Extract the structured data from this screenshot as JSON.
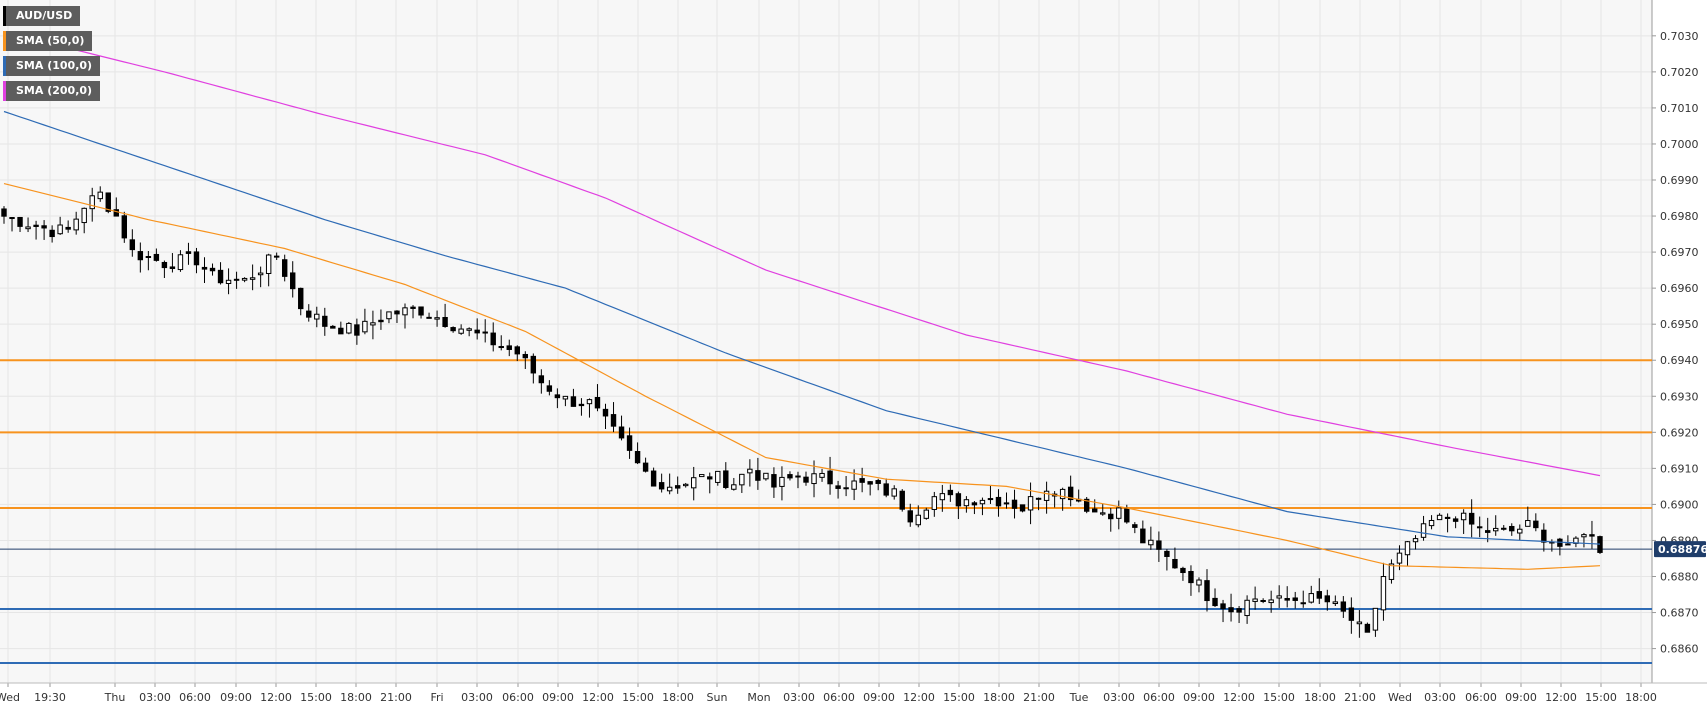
{
  "legend": {
    "items": [
      {
        "label": "AUD/USD",
        "color": "#000000"
      },
      {
        "label": "SMA (50,0)",
        "color": "#f7931e"
      },
      {
        "label": "SMA (100,0)",
        "color": "#2e6bb5"
      },
      {
        "label": "SMA (200,0)",
        "color": "#e040e0"
      }
    ]
  },
  "chart_data": {
    "type": "candlestick",
    "title": "",
    "symbol": "AUD/USD",
    "xlabel": "",
    "ylabel": "",
    "grid": true,
    "legend_position": "top-left",
    "ylim": [
      0.6854,
      0.7042
    ],
    "y_ticks": [
      "0.6860",
      "0.6870",
      "0.6880",
      "0.6890",
      "0.6900",
      "0.6910",
      "0.6920",
      "0.6930",
      "0.6940",
      "0.6950",
      "0.6960",
      "0.6970",
      "0.6980",
      "0.6990",
      "0.7000",
      "0.7010",
      "0.7020",
      "0.7030"
    ],
    "x_ticks": [
      "Wed",
      "19:30",
      "Thu",
      "03:00",
      "06:00",
      "09:00",
      "12:00",
      "15:00",
      "18:00",
      "21:00",
      "Fri",
      "03:00",
      "06:00",
      "09:00",
      "12:00",
      "15:00",
      "18:00",
      "Sun",
      "Mon",
      "03:00",
      "06:00",
      "09:00",
      "12:00",
      "15:00",
      "18:00",
      "21:00",
      "Tue",
      "03:00",
      "06:00",
      "09:00",
      "12:00",
      "15:00",
      "18:00",
      "21:00",
      "Wed",
      "03:00",
      "06:00",
      "09:00",
      "12:00",
      "15:00",
      "18:00"
    ],
    "last_price": "0.68876",
    "last_price_value": 0.68876,
    "colors": {
      "up": "#ffffff",
      "down": "#000000",
      "sma50": "#f7931e",
      "sma100": "#2e6bb5",
      "sma200": "#e040e0",
      "hline_orange": "#f7931e",
      "hline_blue": "#2e6bb5",
      "price_line": "#1f3d6a",
      "price_tag": "#1f3d6a"
    },
    "horizontal_lines": [
      {
        "value": 0.694,
        "color": "orange"
      },
      {
        "value": 0.692,
        "color": "orange"
      },
      {
        "value": 0.6899,
        "color": "orange"
      },
      {
        "value": 0.6871,
        "color": "blue"
      },
      {
        "value": 0.6856,
        "color": "blue"
      }
    ],
    "close_path": [
      [
        0,
        0.698
      ],
      [
        3,
        0.6978
      ],
      [
        6,
        0.6976
      ],
      [
        8,
        0.6976
      ],
      [
        10,
        0.6983
      ],
      [
        12,
        0.6986
      ],
      [
        14,
        0.698
      ],
      [
        16,
        0.697
      ],
      [
        20,
        0.6967
      ],
      [
        24,
        0.6968
      ],
      [
        26,
        0.6963
      ],
      [
        30,
        0.6962
      ],
      [
        34,
        0.6969
      ],
      [
        37,
        0.6955
      ],
      [
        40,
        0.695
      ],
      [
        44,
        0.6948
      ],
      [
        48,
        0.6953
      ],
      [
        52,
        0.6954
      ],
      [
        55,
        0.6951
      ],
      [
        58,
        0.6948
      ],
      [
        61,
        0.6945
      ],
      [
        64,
        0.6942
      ],
      [
        67,
        0.6934
      ],
      [
        70,
        0.6929
      ],
      [
        73,
        0.6928
      ],
      [
        76,
        0.692
      ],
      [
        79,
        0.6911
      ],
      [
        82,
        0.6905
      ],
      [
        85,
        0.6906
      ],
      [
        88,
        0.6908
      ],
      [
        91,
        0.6906
      ],
      [
        93,
        0.691
      ],
      [
        96,
        0.6905
      ],
      [
        99,
        0.6908
      ],
      [
        102,
        0.6907
      ],
      [
        105,
        0.6906
      ],
      [
        108,
        0.6905
      ],
      [
        111,
        0.6903
      ],
      [
        113,
        0.6897
      ],
      [
        116,
        0.6902
      ],
      [
        119,
        0.6901
      ],
      [
        122,
        0.6902
      ],
      [
        125,
        0.6901
      ],
      [
        127,
        0.6899
      ],
      [
        130,
        0.6905
      ],
      [
        133,
        0.6903
      ],
      [
        136,
        0.6898
      ],
      [
        139,
        0.6898
      ],
      [
        142,
        0.689
      ],
      [
        145,
        0.6885
      ],
      [
        148,
        0.688
      ],
      [
        150,
        0.6875
      ],
      [
        153,
        0.6871
      ],
      [
        156,
        0.6874
      ],
      [
        159,
        0.6873
      ],
      [
        162,
        0.6874
      ],
      [
        165,
        0.6873
      ],
      [
        168,
        0.6868
      ],
      [
        170,
        0.6863
      ],
      [
        172,
        0.688
      ],
      [
        175,
        0.6888
      ],
      [
        178,
        0.6895
      ],
      [
        181,
        0.6897
      ],
      [
        184,
        0.6893
      ],
      [
        187,
        0.6892
      ],
      [
        190,
        0.6894
      ],
      [
        193,
        0.689
      ],
      [
        195,
        0.6887
      ],
      [
        197,
        0.6893
      ],
      [
        199,
        0.6888
      ]
    ],
    "sma50": [
      [
        0,
        0.6989
      ],
      [
        18,
        0.6979
      ],
      [
        35,
        0.6971
      ],
      [
        50,
        0.6961
      ],
      [
        65,
        0.6948
      ],
      [
        80,
        0.693
      ],
      [
        95,
        0.6913
      ],
      [
        110,
        0.6907
      ],
      [
        125,
        0.6905
      ],
      [
        140,
        0.6899
      ],
      [
        160,
        0.689
      ],
      [
        173,
        0.6883
      ],
      [
        190,
        0.6882
      ],
      [
        199,
        0.6883
      ]
    ],
    "sma100": [
      [
        0,
        0.7009
      ],
      [
        20,
        0.6994
      ],
      [
        40,
        0.6979
      ],
      [
        55,
        0.6969
      ],
      [
        70,
        0.696
      ],
      [
        90,
        0.6942
      ],
      [
        110,
        0.6926
      ],
      [
        125,
        0.6918
      ],
      [
        140,
        0.691
      ],
      [
        160,
        0.6898
      ],
      [
        180,
        0.6891
      ],
      [
        199,
        0.6889
      ]
    ],
    "sma200": [
      [
        0,
        0.7031
      ],
      [
        20,
        0.702
      ],
      [
        40,
        0.7008
      ],
      [
        60,
        0.6997
      ],
      [
        75,
        0.6985
      ],
      [
        95,
        0.6965
      ],
      [
        120,
        0.6947
      ],
      [
        140,
        0.6937
      ],
      [
        160,
        0.6925
      ],
      [
        180,
        0.6916
      ],
      [
        199,
        0.6908
      ]
    ]
  }
}
